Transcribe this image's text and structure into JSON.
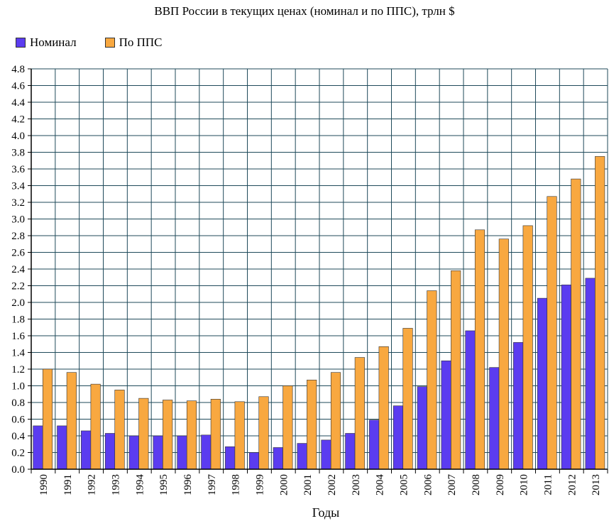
{
  "chart_data": {
    "type": "bar",
    "title": "ВВП России в текущих ценах (номинал и по ППС), трлн $",
    "xlabel": "Годы",
    "ylabel": "",
    "ylim": [
      0,
      4.8
    ],
    "yticks": [
      "0.0",
      "0.2",
      "0.4",
      "0.6",
      "0.8",
      "1.0",
      "1.2",
      "1.4",
      "1.6",
      "1.8",
      "2.0",
      "2.2",
      "2.4",
      "2.6",
      "2.8",
      "3.0",
      "3.2",
      "3.4",
      "3.6",
      "3.8",
      "4.0",
      "4.2",
      "4.4",
      "4.6",
      "4.8"
    ],
    "grid": true,
    "legend_position": "top-left",
    "categories": [
      "1990",
      "1991",
      "1992",
      "1993",
      "1994",
      "1995",
      "1996",
      "1997",
      "1998",
      "1999",
      "2000",
      "2001",
      "2002",
      "2003",
      "2004",
      "2005",
      "2006",
      "2007",
      "2008",
      "2009",
      "2010",
      "2011",
      "2012",
      "2013"
    ],
    "series": [
      {
        "name": "Номинал",
        "color": "#5b3cf0",
        "values": [
          0.52,
          0.52,
          0.46,
          0.43,
          0.4,
          0.4,
          0.4,
          0.41,
          0.27,
          0.2,
          0.26,
          0.31,
          0.35,
          0.43,
          0.59,
          0.76,
          0.99,
          1.3,
          1.66,
          1.22,
          1.52,
          2.05,
          2.21,
          2.29
        ]
      },
      {
        "name": "По ППС",
        "color": "#f8a840",
        "values": [
          1.2,
          1.16,
          1.02,
          0.95,
          0.85,
          0.83,
          0.82,
          0.84,
          0.81,
          0.87,
          1.0,
          1.07,
          1.16,
          1.34,
          1.47,
          1.69,
          2.14,
          2.38,
          2.87,
          2.76,
          2.92,
          3.27,
          3.48,
          3.75
        ]
      }
    ]
  }
}
